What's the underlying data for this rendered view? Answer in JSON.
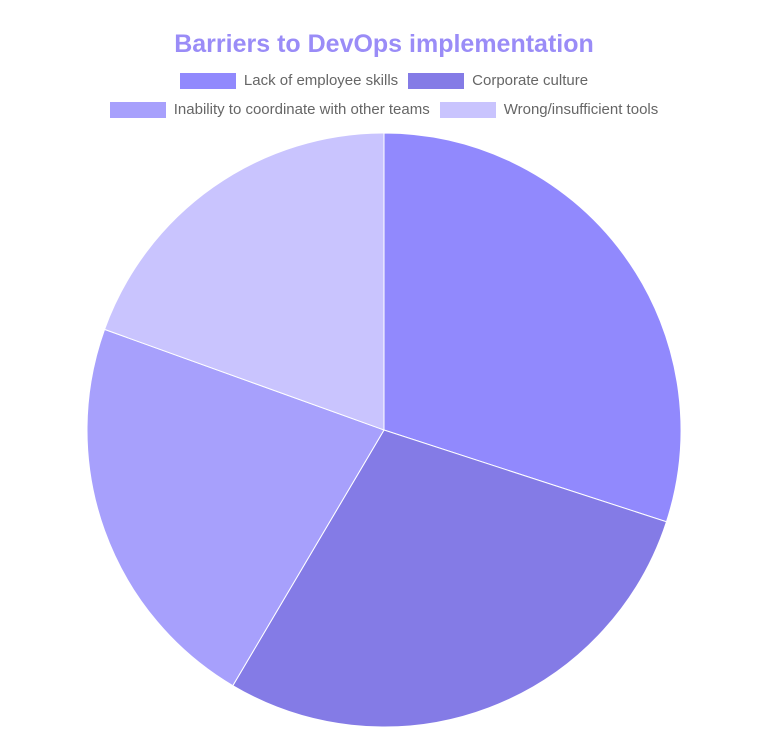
{
  "chart_data": {
    "type": "pie",
    "title": "Barriers to DevOps implementation",
    "title_color": "#9a8cf7",
    "categories": [
      "Lack of employee skills",
      "Corporate culture",
      "Inability to coordinate with other teams",
      "Wrong/insufficient tools"
    ],
    "values": [
      30,
      28.5,
      22,
      19.5
    ],
    "colors": [
      "#9189fd",
      "#847be6",
      "#a7a0fc",
      "#c9c4fe"
    ],
    "legend_position": "top",
    "label_color": "#666666"
  }
}
